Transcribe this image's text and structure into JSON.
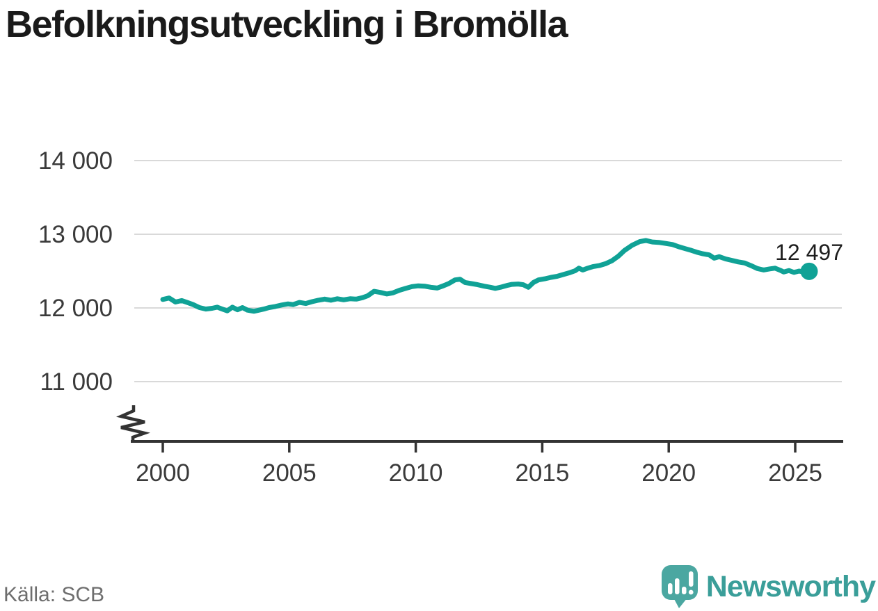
{
  "title": "Befolkningsutveckling i Bromölla",
  "source": "Källa: SCB",
  "brand": {
    "name": "Newsworthy"
  },
  "colors": {
    "line": "#10a296",
    "marker": "#10a296",
    "grid": "#d9d9d9",
    "axis": "#333333",
    "tick_text": "#3a3a3a",
    "title_text": "#1a1a1a",
    "annotation_text": "#1d1d1d",
    "source_text": "#6e6e6e",
    "logo_icon": "#4ba7a1",
    "logo_text": "#3a9e99"
  },
  "chart_data": {
    "type": "line",
    "title": "Befolkningsutveckling i Bromölla",
    "xlabel": "",
    "ylabel": "",
    "xlim": [
      1999,
      2027
    ],
    "ylim": [
      11000,
      14000
    ],
    "axis_break": true,
    "grid": "horizontal",
    "legend": "none",
    "latest_value_label": "12 497",
    "latest_value": 12497,
    "x_ticks": [
      {
        "v": 2000,
        "label": "2000"
      },
      {
        "v": 2005,
        "label": "2005"
      },
      {
        "v": 2010,
        "label": "2010"
      },
      {
        "v": 2015,
        "label": "2015"
      },
      {
        "v": 2020,
        "label": "2020"
      },
      {
        "v": 2025,
        "label": "2025"
      }
    ],
    "y_ticks": [
      {
        "v": 14000,
        "label": "14 000"
      },
      {
        "v": 13000,
        "label": "13 000"
      },
      {
        "v": 12000,
        "label": "12 000"
      },
      {
        "v": 11000,
        "label": "11 000"
      }
    ],
    "points": [
      [
        2000.0,
        12115
      ],
      [
        2000.25,
        12135
      ],
      [
        2000.5,
        12080
      ],
      [
        2000.75,
        12100
      ],
      [
        2001.0,
        12070
      ],
      [
        2001.2,
        12045
      ],
      [
        2001.45,
        12005
      ],
      [
        2001.7,
        11985
      ],
      [
        2001.95,
        11995
      ],
      [
        2002.15,
        12010
      ],
      [
        2002.35,
        11985
      ],
      [
        2002.55,
        11960
      ],
      [
        2002.75,
        12010
      ],
      [
        2002.95,
        11975
      ],
      [
        2003.15,
        12005
      ],
      [
        2003.35,
        11970
      ],
      [
        2003.6,
        11955
      ],
      [
        2003.8,
        11970
      ],
      [
        2004.0,
        11985
      ],
      [
        2004.2,
        12005
      ],
      [
        2004.45,
        12020
      ],
      [
        2004.7,
        12040
      ],
      [
        2004.95,
        12055
      ],
      [
        2005.15,
        12045
      ],
      [
        2005.4,
        12075
      ],
      [
        2005.65,
        12060
      ],
      [
        2005.9,
        12085
      ],
      [
        2006.15,
        12105
      ],
      [
        2006.4,
        12120
      ],
      [
        2006.65,
        12105
      ],
      [
        2006.9,
        12125
      ],
      [
        2007.15,
        12110
      ],
      [
        2007.4,
        12125
      ],
      [
        2007.65,
        12120
      ],
      [
        2007.9,
        12140
      ],
      [
        2008.1,
        12165
      ],
      [
        2008.35,
        12225
      ],
      [
        2008.6,
        12210
      ],
      [
        2008.85,
        12190
      ],
      [
        2009.1,
        12205
      ],
      [
        2009.35,
        12240
      ],
      [
        2009.6,
        12265
      ],
      [
        2009.85,
        12290
      ],
      [
        2010.1,
        12300
      ],
      [
        2010.35,
        12295
      ],
      [
        2010.6,
        12280
      ],
      [
        2010.85,
        12270
      ],
      [
        2011.05,
        12295
      ],
      [
        2011.3,
        12330
      ],
      [
        2011.55,
        12380
      ],
      [
        2011.75,
        12390
      ],
      [
        2011.95,
        12345
      ],
      [
        2012.2,
        12330
      ],
      [
        2012.45,
        12315
      ],
      [
        2012.7,
        12295
      ],
      [
        2012.95,
        12280
      ],
      [
        2013.15,
        12265
      ],
      [
        2013.4,
        12285
      ],
      [
        2013.6,
        12305
      ],
      [
        2013.8,
        12320
      ],
      [
        2014.05,
        12325
      ],
      [
        2014.25,
        12315
      ],
      [
        2014.45,
        12280
      ],
      [
        2014.65,
        12345
      ],
      [
        2014.85,
        12380
      ],
      [
        2015.1,
        12395
      ],
      [
        2015.35,
        12415
      ],
      [
        2015.6,
        12430
      ],
      [
        2015.85,
        12455
      ],
      [
        2016.1,
        12480
      ],
      [
        2016.3,
        12505
      ],
      [
        2016.45,
        12540
      ],
      [
        2016.6,
        12515
      ],
      [
        2016.8,
        12540
      ],
      [
        2017.0,
        12560
      ],
      [
        2017.25,
        12575
      ],
      [
        2017.5,
        12600
      ],
      [
        2017.75,
        12640
      ],
      [
        2018.0,
        12700
      ],
      [
        2018.25,
        12780
      ],
      [
        2018.55,
        12850
      ],
      [
        2018.85,
        12900
      ],
      [
        2019.1,
        12915
      ],
      [
        2019.35,
        12895
      ],
      [
        2019.6,
        12890
      ],
      [
        2019.9,
        12875
      ],
      [
        2020.15,
        12860
      ],
      [
        2020.4,
        12830
      ],
      [
        2020.65,
        12805
      ],
      [
        2020.9,
        12780
      ],
      [
        2021.1,
        12758
      ],
      [
        2021.35,
        12735
      ],
      [
        2021.6,
        12720
      ],
      [
        2021.8,
        12675
      ],
      [
        2022.0,
        12695
      ],
      [
        2022.25,
        12665
      ],
      [
        2022.5,
        12645
      ],
      [
        2022.75,
        12625
      ],
      [
        2023.0,
        12610
      ],
      [
        2023.25,
        12575
      ],
      [
        2023.5,
        12535
      ],
      [
        2023.75,
        12515
      ],
      [
        2024.0,
        12530
      ],
      [
        2024.2,
        12540
      ],
      [
        2024.4,
        12512
      ],
      [
        2024.55,
        12488
      ],
      [
        2024.75,
        12508
      ],
      [
        2024.95,
        12482
      ],
      [
        2025.15,
        12500
      ],
      [
        2025.35,
        12488
      ],
      [
        2025.55,
        12497
      ]
    ]
  }
}
